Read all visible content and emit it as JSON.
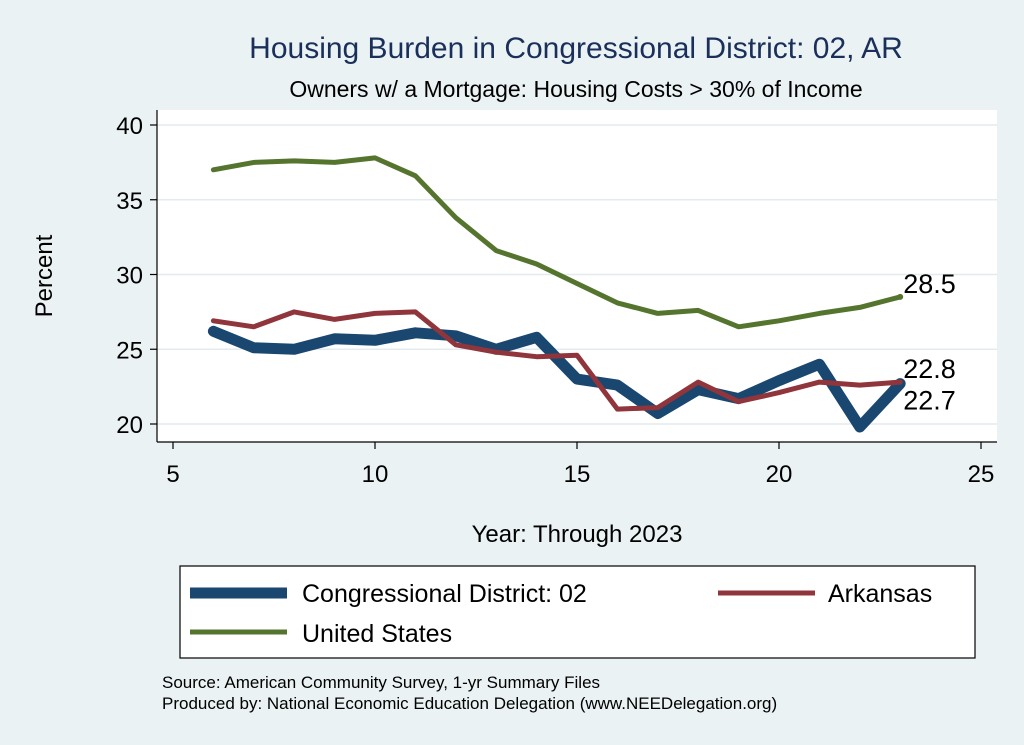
{
  "chart_data": {
    "type": "line",
    "title": "Housing Burden in Congressional District:  02, AR",
    "subtitle": "Owners w/ a Mortgage: Housing Costs > 30% of Income",
    "xlabel": "Year: Through 2023",
    "ylabel": "Percent",
    "xlim": [
      5,
      25
    ],
    "ylim": [
      19.3,
      40.7
    ],
    "xticks": [
      5,
      10,
      15,
      20,
      25
    ],
    "yticks": [
      20,
      25,
      30,
      35,
      40
    ],
    "grid": true,
    "legend_position": "bottom",
    "series": [
      {
        "name": "Congressional District:  02",
        "color": "#1a476f",
        "x": [
          6,
          7,
          8,
          9,
          10,
          11,
          12,
          13,
          14,
          15,
          16,
          17,
          18,
          19,
          20,
          21,
          22,
          23
        ],
        "values": [
          26.2,
          25.1,
          25.0,
          25.7,
          25.6,
          26.1,
          25.9,
          25.0,
          25.8,
          23.0,
          22.6,
          20.7,
          22.3,
          21.7,
          22.9,
          24.0,
          19.8,
          22.7
        ],
        "end_label": "22.7"
      },
      {
        "name": "Arkansas",
        "color": "#90353b",
        "x": [
          6,
          7,
          8,
          9,
          10,
          11,
          12,
          13,
          14,
          15,
          16,
          17,
          18,
          19,
          20,
          21,
          22,
          23
        ],
        "values": [
          26.9,
          26.5,
          27.5,
          27.0,
          27.4,
          27.5,
          25.3,
          24.8,
          24.5,
          24.6,
          21.0,
          21.1,
          22.8,
          21.5,
          22.1,
          22.8,
          22.6,
          22.8
        ],
        "end_label": "22.8"
      },
      {
        "name": "United States",
        "color": "#55752f",
        "x": [
          6,
          7,
          8,
          9,
          10,
          11,
          12,
          13,
          14,
          15,
          16,
          17,
          18,
          19,
          20,
          21,
          22,
          23
        ],
        "values": [
          37.0,
          37.5,
          37.6,
          37.5,
          37.8,
          36.6,
          33.8,
          31.6,
          30.7,
          29.4,
          28.1,
          27.4,
          27.6,
          26.5,
          26.9,
          27.4,
          27.8,
          28.5
        ],
        "end_label": "28.5"
      }
    ]
  },
  "notes": [
    "Source: American Community Survey, 1-yr Summary Files",
    "Produced by: National Economic Education Delegation (www.NEEDelegation.org)"
  ]
}
